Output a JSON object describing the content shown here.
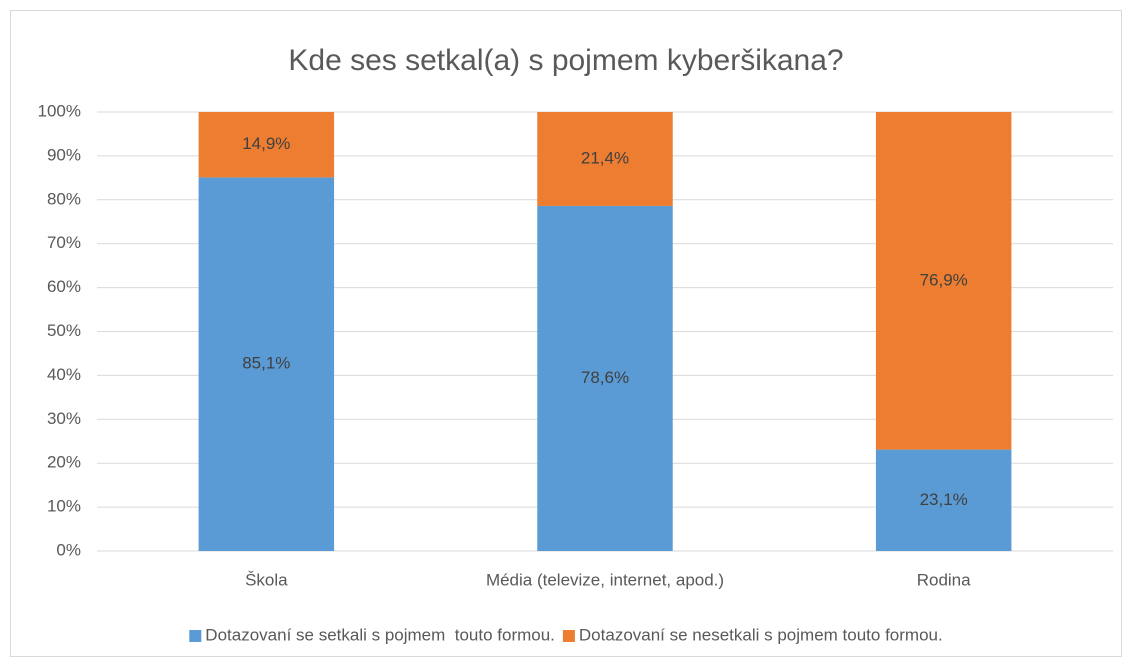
{
  "chart_data": {
    "type": "stacked_bar",
    "title": "Kde ses setkal(a) s pojmem kyberšikana?",
    "categories": [
      "Škola",
      "Média (televize, internet, apod.)",
      "Rodina"
    ],
    "series": [
      {
        "name": "Dotazovaní se setkali s pojmem  touto formou.",
        "color": "#5b9bd5",
        "values": [
          85.1,
          78.6,
          23.1
        ],
        "value_labels": [
          "85,1%",
          "78,6%",
          "23,1%"
        ]
      },
      {
        "name": "Dotazovaní se nesetkali s pojmem touto formou.",
        "color": "#ed7d31",
        "values": [
          14.9,
          21.4,
          76.9
        ],
        "value_labels": [
          "14,9%",
          "21,4%",
          "76,9%"
        ]
      }
    ],
    "ylim": [
      0,
      100
    ],
    "yticks": [
      {
        "value": 0,
        "label": "0%"
      },
      {
        "value": 10,
        "label": "10%"
      },
      {
        "value": 20,
        "label": "20%"
      },
      {
        "value": 30,
        "label": "30%"
      },
      {
        "value": 40,
        "label": "40%"
      },
      {
        "value": 50,
        "label": "50%"
      },
      {
        "value": 60,
        "label": "60%"
      },
      {
        "value": 70,
        "label": "70%"
      },
      {
        "value": 80,
        "label": "80%"
      },
      {
        "value": 90,
        "label": "90%"
      },
      {
        "value": 100,
        "label": "100%"
      }
    ],
    "grid": true,
    "legend": "bottom"
  }
}
